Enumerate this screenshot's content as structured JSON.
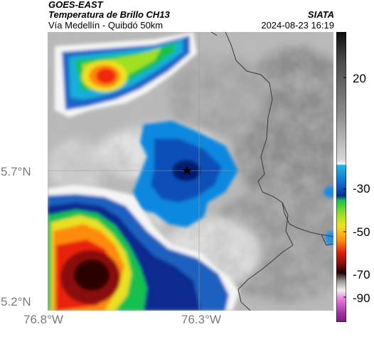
{
  "header": {
    "title_line1": "GOES-EAST",
    "title_line2": "Temperatura de Brillo CH13",
    "subtitle": "Vía Medellín - Quibdó 50km",
    "brand": "SIATA",
    "datetime": "2024-08-23 16:19"
  },
  "axes": {
    "lat_labels": [
      "5.7°N",
      "5.2°N"
    ],
    "lon_labels": [
      "76.8°W",
      "76.3°W"
    ]
  },
  "colorbar": {
    "tick_labels": [
      "20",
      "-30",
      "-50",
      "-70",
      "-90"
    ]
  },
  "colors": {
    "background": "#ffffff",
    "gridline": "#9a9a9a",
    "border_line": "#3a3a3a"
  }
}
